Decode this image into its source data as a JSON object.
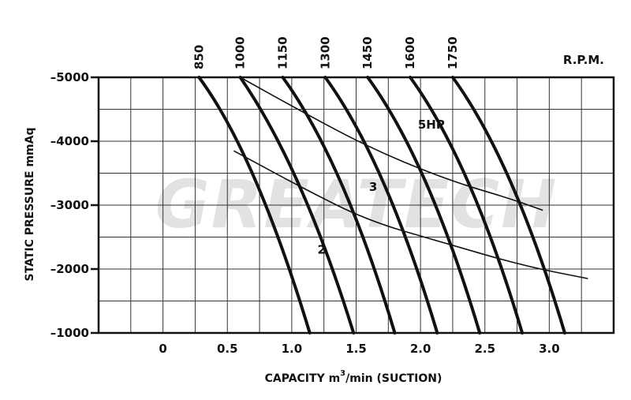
{
  "chart_data": {
    "type": "line",
    "watermark": "GREATECH",
    "xlabel_main": "CAPACITY  m",
    "xlabel_sup": "3",
    "xlabel_rest": "/min  (SUCTION)",
    "ylabel": "STATIC PRESSURE  mmAq",
    "rpm_label": "R.P.M.",
    "xlim": [
      -0.5,
      3.5
    ],
    "ylim": [
      -1000,
      -5000
    ],
    "x_ticks": [
      0,
      0.5,
      1.0,
      1.5,
      2.0,
      2.5,
      3.0
    ],
    "x_tick_labels": [
      "0",
      "0.5",
      "1.0",
      "1.5",
      "2.0",
      "2.5",
      "3.0"
    ],
    "y_ticks": [
      -5000,
      -4000,
      -3000,
      -2000,
      -1000
    ],
    "y_tick_labels": [
      "–5000",
      "–4000",
      "–3000",
      "–2000",
      "–1000"
    ],
    "grid": true,
    "rpm_series": [
      {
        "name": "850",
        "points": [
          [
            0.28,
            -5000
          ],
          [
            0.72,
            -3800
          ],
          [
            1.14,
            -1000
          ]
        ]
      },
      {
        "name": "1000",
        "points": [
          [
            0.6,
            -5000
          ],
          [
            1.08,
            -3600
          ],
          [
            1.48,
            -1000
          ]
        ]
      },
      {
        "name": "1150",
        "points": [
          [
            0.93,
            -5000
          ],
          [
            1.4,
            -3700
          ],
          [
            1.8,
            -1000
          ]
        ]
      },
      {
        "name": "1300",
        "points": [
          [
            1.26,
            -5000
          ],
          [
            1.73,
            -3700
          ],
          [
            2.13,
            -1000
          ]
        ]
      },
      {
        "name": "1450",
        "points": [
          [
            1.59,
            -5000
          ],
          [
            2.06,
            -3700
          ],
          [
            2.46,
            -1000
          ]
        ]
      },
      {
        "name": "1600",
        "points": [
          [
            1.92,
            -5000
          ],
          [
            2.39,
            -3700
          ],
          [
            2.79,
            -1000
          ]
        ]
      },
      {
        "name": "1750",
        "points": [
          [
            2.25,
            -5000
          ],
          [
            2.72,
            -3700
          ],
          [
            3.12,
            -1000
          ]
        ]
      }
    ],
    "power_series": [
      {
        "name": "5HP",
        "points": [
          [
            0.6,
            -5000
          ],
          [
            1.0,
            -4550
          ],
          [
            1.6,
            -3900
          ],
          [
            2.2,
            -3400
          ],
          [
            2.7,
            -3100
          ],
          [
            2.95,
            -2920
          ]
        ]
      },
      {
        "name": "3",
        "points": [
          [
            0.55,
            -3850
          ],
          [
            1.1,
            -3250
          ],
          [
            1.6,
            -2750
          ],
          [
            2.2,
            -2400
          ],
          [
            2.8,
            -2050
          ],
          [
            3.3,
            -1850
          ]
        ]
      },
      {
        "name": "2",
        "points": []
      }
    ],
    "curve_labels": [
      {
        "text": "5HP",
        "x": 1.98,
        "y": -4200
      },
      {
        "text": "3",
        "x": 1.6,
        "y": -3220
      },
      {
        "text": "2",
        "x": 1.2,
        "y": -2240
      }
    ]
  }
}
